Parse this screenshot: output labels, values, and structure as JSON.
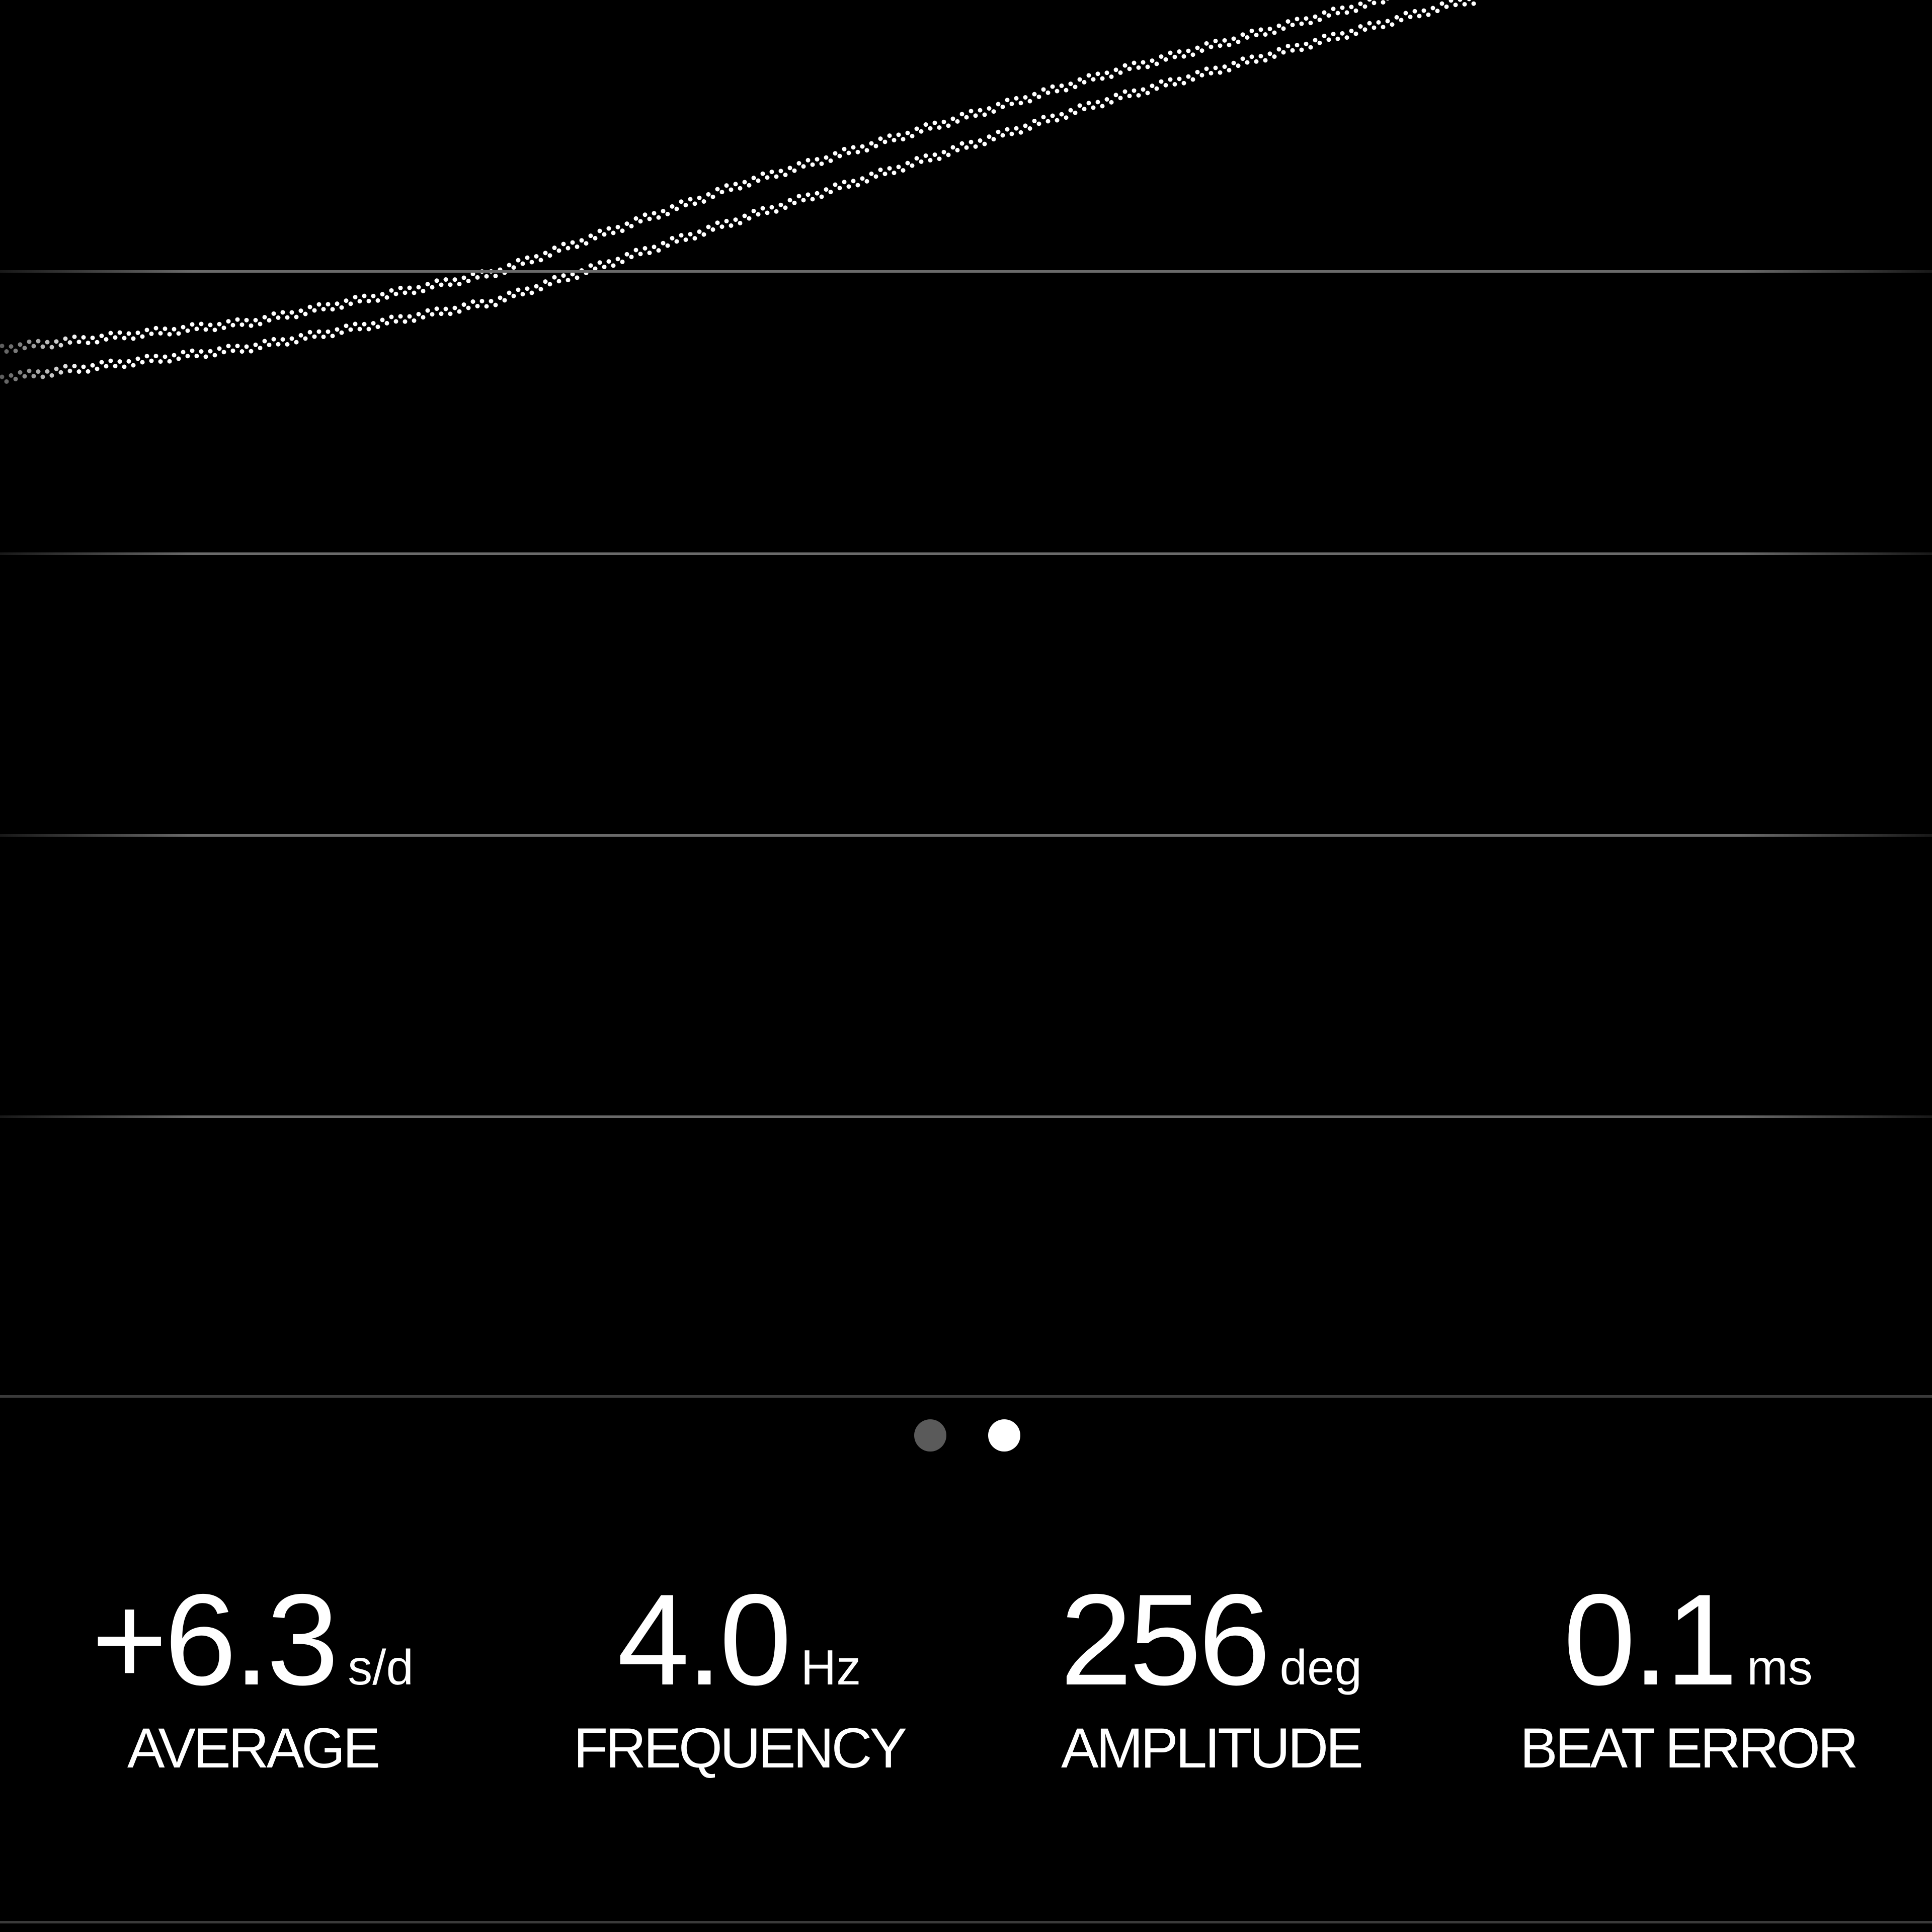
{
  "colors": {
    "background": "#000000",
    "trace": "#ffffff",
    "gridline": "#6a6a6a",
    "page_dot_inactive": "#5a5a5a",
    "page_dot_active": "#ffffff"
  },
  "pager": {
    "pages": 2,
    "active_index": 1
  },
  "stats": [
    {
      "value": "+6.3",
      "unit": "s/d",
      "label": "AVERAGE"
    },
    {
      "value": "4.0",
      "unit": "Hz",
      "label": "FREQUENCY"
    },
    {
      "value": "256",
      "unit": "deg",
      "label": "AMPLITUDE"
    },
    {
      "value": "0.1",
      "unit": "ms",
      "label": "BEAT ERROR"
    }
  ]
}
